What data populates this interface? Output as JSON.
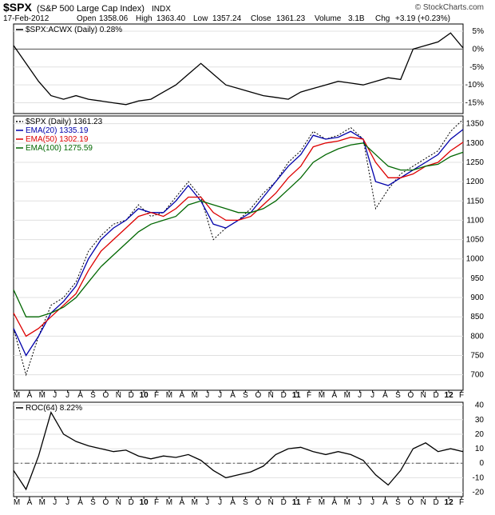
{
  "header": {
    "symbol": "$SPX",
    "name": "(S&P 500 Large Cap Index)",
    "exchange": "INDX",
    "watermark": "© StockCharts.com",
    "date": "17-Feb-2012",
    "open_label": "Open",
    "open": "1358.06",
    "high_label": "High",
    "high": "1363.40",
    "low_label": "Low",
    "low": "1357.24",
    "close_label": "Close",
    "close": "1361.23",
    "volume_label": "Volume",
    "volume": "3.1B",
    "chg_label": "Chg",
    "chg": "+3.19 (+0.23%)"
  },
  "chart_data": [
    {
      "type": "line",
      "panel": "relative-strength",
      "legend": [
        {
          "text": "$SPX:ACWX (Daily) 0.28%",
          "color": "#000000"
        }
      ],
      "ylim": [
        -18,
        7
      ],
      "yticks": [
        {
          "value": 5,
          "label": "5%"
        },
        {
          "value": 0,
          "label": "0%"
        },
        {
          "value": -5,
          "label": "-5%"
        },
        {
          "value": -10,
          "label": "-10%"
        },
        {
          "value": -15,
          "label": "-15%"
        }
      ],
      "reference_line": 0,
      "series": [
        {
          "color": "#000000",
          "x": [
            0,
            1,
            2,
            3,
            4,
            5,
            6,
            7,
            8,
            9,
            10,
            11,
            12,
            13,
            14,
            15,
            16,
            17,
            18,
            19,
            20,
            21,
            22,
            23,
            24,
            25,
            26,
            27,
            28,
            29,
            30,
            31,
            32,
            33,
            34,
            35,
            36
          ],
          "values": [
            1.0,
            -4.0,
            -9.0,
            -13.0,
            -14.0,
            -13.0,
            -14.0,
            -14.5,
            -15.0,
            -15.5,
            -14.5,
            -14.0,
            -12.0,
            -10.0,
            -7.0,
            -4.0,
            -7.0,
            -10.0,
            -11.0,
            -12.0,
            -13.0,
            -13.5,
            -14.0,
            -12.0,
            -11.0,
            -10.0,
            -9.0,
            -9.5,
            -10.0,
            -9.0,
            -8.0,
            -8.5,
            0.0,
            1.0,
            2.0,
            4.5,
            0.3
          ]
        }
      ]
    },
    {
      "type": "line",
      "panel": "price",
      "legend": [
        {
          "text": "$SPX (Daily) 1361.23",
          "color": "#000000",
          "style": "dotted"
        },
        {
          "text": "EMA(20) 1335.19",
          "color": "#0000aa"
        },
        {
          "text": "EMA(50) 1302.19",
          "color": "#dd0000"
        },
        {
          "text": "EMA(100) 1275.59",
          "color": "#006600"
        }
      ],
      "ylim": [
        660,
        1370
      ],
      "yticks": [
        {
          "value": 700,
          "label": "700"
        },
        {
          "value": 750,
          "label": "750"
        },
        {
          "value": 800,
          "label": "800"
        },
        {
          "value": 850,
          "label": "850"
        },
        {
          "value": 900,
          "label": "900"
        },
        {
          "value": 950,
          "label": "950"
        },
        {
          "value": 1000,
          "label": "1000"
        },
        {
          "value": 1050,
          "label": "1050"
        },
        {
          "value": 1100,
          "label": "1100"
        },
        {
          "value": 1150,
          "label": "1150"
        },
        {
          "value": 1200,
          "label": "1200"
        },
        {
          "value": 1250,
          "label": "1250"
        },
        {
          "value": 1300,
          "label": "1300"
        },
        {
          "value": 1350,
          "label": "1350"
        }
      ],
      "series": [
        {
          "style": "dotted",
          "color": "#000000",
          "x": [
            0,
            1,
            2,
            3,
            4,
            5,
            6,
            7,
            8,
            9,
            10,
            11,
            12,
            13,
            14,
            15,
            16,
            17,
            18,
            19,
            20,
            21,
            22,
            23,
            24,
            25,
            26,
            27,
            28,
            29,
            30,
            31,
            32,
            33,
            34,
            35,
            36
          ],
          "values": [
            820,
            700,
            800,
            880,
            900,
            940,
            1020,
            1060,
            1090,
            1100,
            1140,
            1110,
            1120,
            1160,
            1200,
            1160,
            1050,
            1080,
            1100,
            1130,
            1170,
            1200,
            1250,
            1280,
            1330,
            1310,
            1320,
            1340,
            1310,
            1130,
            1180,
            1220,
            1240,
            1260,
            1280,
            1330,
            1361
          ]
        },
        {
          "color": "#0000aa",
          "x": [
            0,
            1,
            2,
            3,
            4,
            5,
            6,
            7,
            8,
            9,
            10,
            11,
            12,
            13,
            14,
            15,
            16,
            17,
            18,
            19,
            20,
            21,
            22,
            23,
            24,
            25,
            26,
            27,
            28,
            29,
            30,
            31,
            32,
            33,
            34,
            35,
            36
          ],
          "values": [
            820,
            750,
            800,
            860,
            890,
            930,
            1000,
            1050,
            1080,
            1100,
            1130,
            1120,
            1120,
            1150,
            1190,
            1150,
            1090,
            1080,
            1100,
            1120,
            1160,
            1200,
            1240,
            1270,
            1320,
            1310,
            1315,
            1330,
            1310,
            1200,
            1190,
            1210,
            1230,
            1250,
            1270,
            1310,
            1335
          ]
        },
        {
          "color": "#dd0000",
          "x": [
            0,
            1,
            2,
            3,
            4,
            5,
            6,
            7,
            8,
            9,
            10,
            11,
            12,
            13,
            14,
            15,
            16,
            17,
            18,
            19,
            20,
            21,
            22,
            23,
            24,
            25,
            26,
            27,
            28,
            29,
            30,
            31,
            32,
            33,
            34,
            35,
            36
          ],
          "values": [
            860,
            800,
            820,
            850,
            880,
            910,
            970,
            1020,
            1050,
            1080,
            1110,
            1120,
            1110,
            1130,
            1160,
            1160,
            1120,
            1100,
            1100,
            1110,
            1140,
            1170,
            1210,
            1240,
            1290,
            1300,
            1305,
            1315,
            1310,
            1250,
            1210,
            1210,
            1220,
            1240,
            1250,
            1280,
            1302
          ]
        },
        {
          "color": "#006600",
          "x": [
            0,
            1,
            2,
            3,
            4,
            5,
            6,
            7,
            8,
            9,
            10,
            11,
            12,
            13,
            14,
            15,
            16,
            17,
            18,
            19,
            20,
            21,
            22,
            23,
            24,
            25,
            26,
            27,
            28,
            29,
            30,
            31,
            32,
            33,
            34,
            35,
            36
          ],
          "values": [
            920,
            850,
            850,
            860,
            875,
            900,
            940,
            980,
            1010,
            1040,
            1070,
            1090,
            1100,
            1110,
            1140,
            1150,
            1140,
            1130,
            1120,
            1120,
            1130,
            1150,
            1180,
            1210,
            1250,
            1270,
            1285,
            1295,
            1300,
            1270,
            1240,
            1230,
            1230,
            1240,
            1245,
            1265,
            1276
          ]
        }
      ]
    },
    {
      "type": "line",
      "panel": "roc",
      "legend": [
        {
          "text": "ROC(64) 8.22%",
          "color": "#000000"
        }
      ],
      "ylim": [
        -23,
        42
      ],
      "yticks": [
        {
          "value": 40,
          "label": "40"
        },
        {
          "value": 30,
          "label": "30"
        },
        {
          "value": 20,
          "label": "20"
        },
        {
          "value": 10,
          "label": "10"
        },
        {
          "value": 0,
          "label": "0"
        },
        {
          "value": -10,
          "label": "-10"
        },
        {
          "value": -20,
          "label": "-20"
        }
      ],
      "reference_line": 0,
      "series": [
        {
          "color": "#000000",
          "x": [
            0,
            1,
            2,
            3,
            4,
            5,
            6,
            7,
            8,
            9,
            10,
            11,
            12,
            13,
            14,
            15,
            16,
            17,
            18,
            19,
            20,
            21,
            22,
            23,
            24,
            25,
            26,
            27,
            28,
            29,
            30,
            31,
            32,
            33,
            34,
            35,
            36
          ],
          "values": [
            -5,
            -18,
            5,
            35,
            20,
            15,
            12,
            10,
            8,
            9,
            5,
            3,
            5,
            4,
            6,
            2,
            -5,
            -10,
            -8,
            -6,
            -2,
            6,
            10,
            11,
            8,
            6,
            8,
            6,
            2,
            -8,
            -15,
            -5,
            10,
            14,
            8,
            10,
            8
          ]
        }
      ]
    }
  ],
  "x_axis": {
    "month_labels": [
      "M",
      "A",
      "M",
      "J",
      "J",
      "A",
      "S",
      "O",
      "N",
      "D",
      "10",
      "F",
      "M",
      "A",
      "M",
      "J",
      "J",
      "A",
      "S",
      "O",
      "N",
      "D",
      "11",
      "F",
      "M",
      "A",
      "M",
      "J",
      "J",
      "A",
      "S",
      "O",
      "N",
      "D",
      "12",
      "F"
    ],
    "bold_labels": [
      "10",
      "11",
      "12"
    ]
  }
}
